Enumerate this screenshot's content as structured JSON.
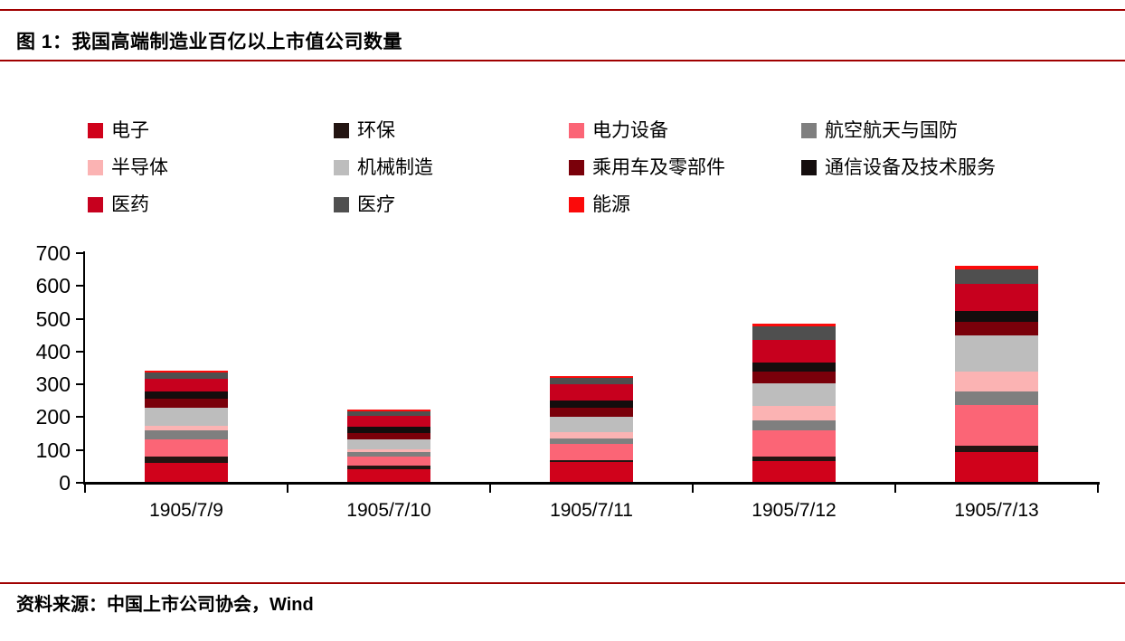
{
  "figure": {
    "title": "图 1：我国高端制造业百亿以上市值公司数量",
    "source": "资料来源：中国上市公司协会，Wind",
    "accent_rule_color": "#A00000"
  },
  "chart_data": {
    "type": "bar",
    "stacked": true,
    "title": "我国高端制造业百亿以上市值公司数量",
    "xlabel": "",
    "ylabel": "",
    "ylim": [
      0,
      700
    ],
    "yticks": [
      0,
      100,
      200,
      300,
      400,
      500,
      600,
      700
    ],
    "grid": false,
    "legend_position": "top",
    "categories": [
      "1905/7/9",
      "1905/7/10",
      "1905/7/11",
      "1905/7/12",
      "1905/7/13"
    ],
    "series": [
      {
        "name": "电子",
        "color": "#D0021B",
        "values": [
          58,
          40,
          60,
          64,
          90
        ]
      },
      {
        "name": "环保",
        "color": "#231512",
        "values": [
          18,
          9,
          7,
          13,
          20
        ]
      },
      {
        "name": "电力设备",
        "color": "#FB6576",
        "values": [
          53,
          27,
          48,
          80,
          124
        ]
      },
      {
        "name": "航空航天与国防",
        "color": "#7F7F7F",
        "values": [
          27,
          15,
          18,
          31,
          41
        ]
      },
      {
        "name": "半导体",
        "color": "#FBB3B3",
        "values": [
          16,
          9,
          20,
          43,
          61
        ]
      },
      {
        "name": "机械制造",
        "color": "#BDBDBD",
        "values": [
          55,
          31,
          46,
          70,
          111
        ]
      },
      {
        "name": "乘用车及零部件",
        "color": "#7A000A",
        "values": [
          26,
          18,
          26,
          36,
          41
        ]
      },
      {
        "name": "通信设备及技术服务",
        "color": "#140D0D",
        "values": [
          22,
          18,
          22,
          27,
          32
        ]
      },
      {
        "name": "医药",
        "color": "#C7001E",
        "values": [
          40,
          35,
          50,
          70,
          85
        ]
      },
      {
        "name": "医疗",
        "color": "#4F4F4F",
        "values": [
          18,
          14,
          20,
          40,
          44
        ]
      },
      {
        "name": "能源",
        "color": "#FB0A0A",
        "values": [
          7,
          6,
          6,
          8,
          10
        ]
      }
    ]
  }
}
